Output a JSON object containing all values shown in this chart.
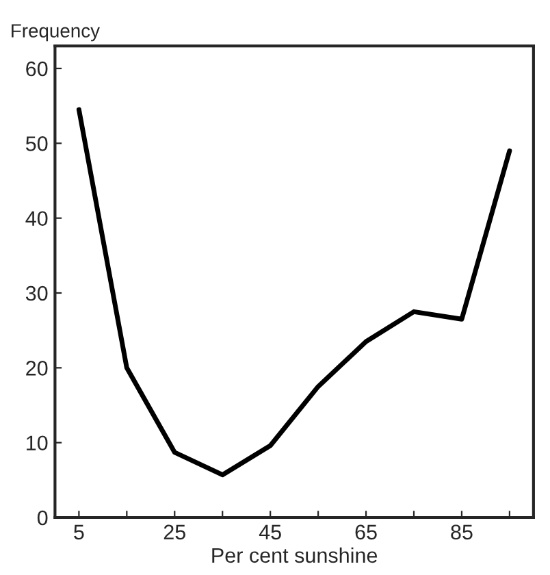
{
  "chart_data": {
    "type": "line",
    "xlabel": "Per cent sunshine",
    "ylabel": "Frequency",
    "x": [
      5,
      15,
      25,
      35,
      45,
      55,
      65,
      75,
      85,
      95
    ],
    "series": [
      {
        "color": "#000000",
        "values": [
          54.5,
          20,
          8.7,
          5.7,
          9.6,
          17.5,
          23.5,
          27.5,
          26.5,
          49
        ]
      }
    ],
    "xlim": [
      0,
      100
    ],
    "ylim": [
      0,
      63
    ],
    "xticks": [
      5,
      {
        "value": 15,
        "label": null
      },
      25,
      {
        "value": 35,
        "label": null
      },
      45,
      {
        "value": 55,
        "label": null
      },
      65,
      {
        "value": 75,
        "label": null
      },
      85,
      {
        "value": 95,
        "label": null
      }
    ],
    "yticks": [
      0,
      10,
      20,
      30,
      40,
      50,
      60
    ],
    "grid": false,
    "marker": "none",
    "line_style": "solid"
  }
}
